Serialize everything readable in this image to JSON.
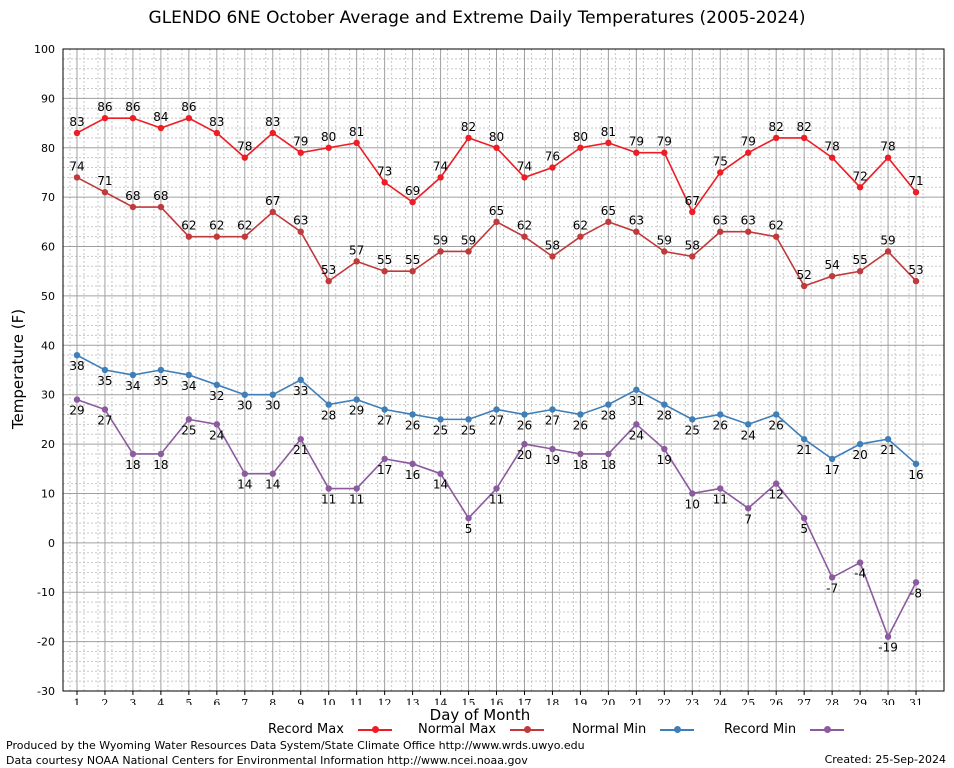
{
  "chart_data": {
    "type": "line",
    "title": "GLENDO 6NE October Average and Extreme Daily Temperatures (2005-2024)",
    "xlabel": "Day of Month",
    "ylabel": "Temperature (F)",
    "ylim": [
      -30,
      100
    ],
    "yticks": [
      -30,
      -20,
      -10,
      0,
      10,
      20,
      30,
      40,
      50,
      60,
      70,
      80,
      90,
      100
    ],
    "x": [
      1,
      2,
      3,
      4,
      5,
      6,
      7,
      8,
      9,
      10,
      11,
      12,
      13,
      14,
      15,
      16,
      17,
      18,
      19,
      20,
      21,
      22,
      23,
      24,
      25,
      26,
      27,
      28,
      29,
      30,
      31
    ],
    "grid": true,
    "legend_position": "bottom",
    "series": [
      {
        "name": "Record Max",
        "color": "#ee1c25",
        "label_pos": "above",
        "values": [
          83,
          86,
          86,
          84,
          86,
          83,
          78,
          83,
          79,
          80,
          81,
          73,
          69,
          74,
          82,
          80,
          74,
          76,
          80,
          81,
          79,
          79,
          67,
          75,
          79,
          82,
          82,
          78,
          72,
          78,
          71
        ]
      },
      {
        "name": "Normal Max",
        "color": "#c0393b",
        "label_pos": "above",
        "values": [
          74,
          71,
          68,
          68,
          62,
          62,
          62,
          67,
          63,
          53,
          57,
          55,
          55,
          59,
          59,
          65,
          62,
          58,
          62,
          65,
          63,
          59,
          58,
          63,
          63,
          62,
          52,
          54,
          55,
          59,
          53
        ]
      },
      {
        "name": "Normal Min",
        "color": "#3f7fb9",
        "label_pos": "below",
        "values": [
          38,
          35,
          34,
          35,
          34,
          32,
          30,
          30,
          33,
          28,
          29,
          27,
          26,
          25,
          25,
          27,
          26,
          27,
          26,
          28,
          31,
          28,
          25,
          26,
          24,
          26,
          21,
          17,
          20,
          21,
          16
        ]
      },
      {
        "name": "Record Min",
        "color": "#8c5a9e",
        "label_pos": "below",
        "values": [
          29,
          27,
          18,
          18,
          25,
          24,
          14,
          14,
          21,
          11,
          11,
          17,
          16,
          14,
          5,
          11,
          20,
          19,
          18,
          18,
          24,
          19,
          10,
          11,
          7,
          12,
          5,
          -7,
          -4,
          -19,
          -8
        ]
      }
    ]
  },
  "footer": {
    "produced_by": "Produced by the Wyoming Water Resources Data System/State Climate Office http://www.wrds.uwyo.edu",
    "courtesy": "Data courtesy NOAA National Centers for Environmental Information http://www.ncei.noaa.gov",
    "created": "Created:  25-Sep-2024"
  }
}
